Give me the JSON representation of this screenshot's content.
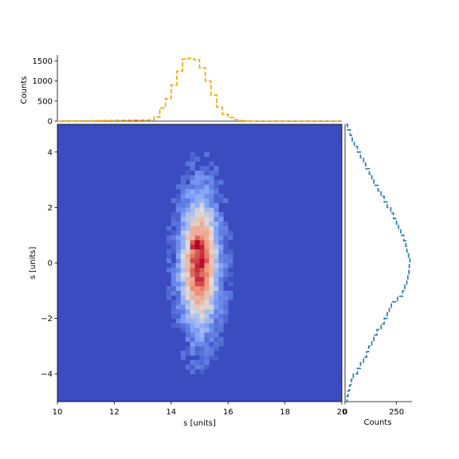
{
  "chart_data": [
    {
      "type": "heatmap",
      "panel": "main",
      "xlabel": "s [units]",
      "ylabel": "s [units]",
      "xlim": [
        10,
        20
      ],
      "ylim": [
        -5,
        5
      ],
      "xticks": [
        "10",
        "12",
        "14",
        "16",
        "18",
        "20"
      ],
      "yticks": [
        "−4",
        "−2",
        "0",
        "2",
        "4"
      ],
      "colormap": "coolwarm",
      "distribution": {
        "x_center": 15.0,
        "x_sigma": 0.45,
        "y_center": 0.0,
        "y_sigma": 1.6,
        "peak_x": 14.9,
        "peak_y": 0.7
      },
      "bins": {
        "x": 60,
        "y": 60
      },
      "background_color": "#3b4cc0"
    },
    {
      "type": "line",
      "panel": "top-marginal",
      "drawstyle": "steps",
      "linestyle": "dashed",
      "color": "#f5a300",
      "ylabel": "Counts",
      "xlim": [
        10,
        20
      ],
      "ylim": [
        0,
        1650
      ],
      "yticks": [
        "0",
        "500",
        "1000",
        "1500"
      ],
      "x": [
        13.3,
        13.5,
        13.7,
        13.9,
        14.1,
        14.3,
        14.5,
        14.7,
        14.9,
        15.1,
        15.3,
        15.5,
        15.7,
        15.9,
        16.1,
        16.3,
        16.5,
        16.7
      ],
      "y": [
        30,
        100,
        330,
        560,
        900,
        1250,
        1550,
        1570,
        1530,
        1330,
        1000,
        650,
        350,
        170,
        90,
        40,
        15,
        5
      ]
    },
    {
      "type": "line",
      "panel": "right-marginal",
      "drawstyle": "steps",
      "linestyle": "dashed",
      "orientation": "horizontal",
      "color": "#1f77b4",
      "xlabel": "Counts",
      "xlim": [
        0,
        325
      ],
      "ylim": [
        -5,
        5
      ],
      "xticks": [
        "0",
        "250"
      ],
      "y": [
        -5.0,
        -4.8,
        -4.6,
        -4.4,
        -4.2,
        -4.0,
        -3.8,
        -3.6,
        -3.4,
        -3.2,
        -3.0,
        -2.8,
        -2.6,
        -2.4,
        -2.2,
        -2.0,
        -1.8,
        -1.6,
        -1.4,
        -1.2,
        -1.0,
        -0.8,
        -0.6,
        -0.4,
        -0.2,
        0.0,
        0.2,
        0.4,
        0.6,
        0.8,
        1.0,
        1.2,
        1.4,
        1.6,
        1.8,
        2.0,
        2.2,
        2.4,
        2.6,
        2.8,
        3.0,
        3.2,
        3.4,
        3.6,
        3.8,
        4.0,
        4.2,
        4.4,
        4.6,
        4.8
      ],
      "counts": [
        10,
        15,
        22,
        30,
        40,
        60,
        75,
        90,
        105,
        115,
        130,
        140,
        155,
        175,
        190,
        205,
        215,
        225,
        255,
        280,
        290,
        300,
        305,
        310,
        312,
        315,
        308,
        300,
        295,
        285,
        270,
        260,
        250,
        235,
        222,
        205,
        190,
        175,
        160,
        140,
        130,
        118,
        100,
        90,
        75,
        60,
        45,
        35,
        25,
        12
      ]
    }
  ]
}
